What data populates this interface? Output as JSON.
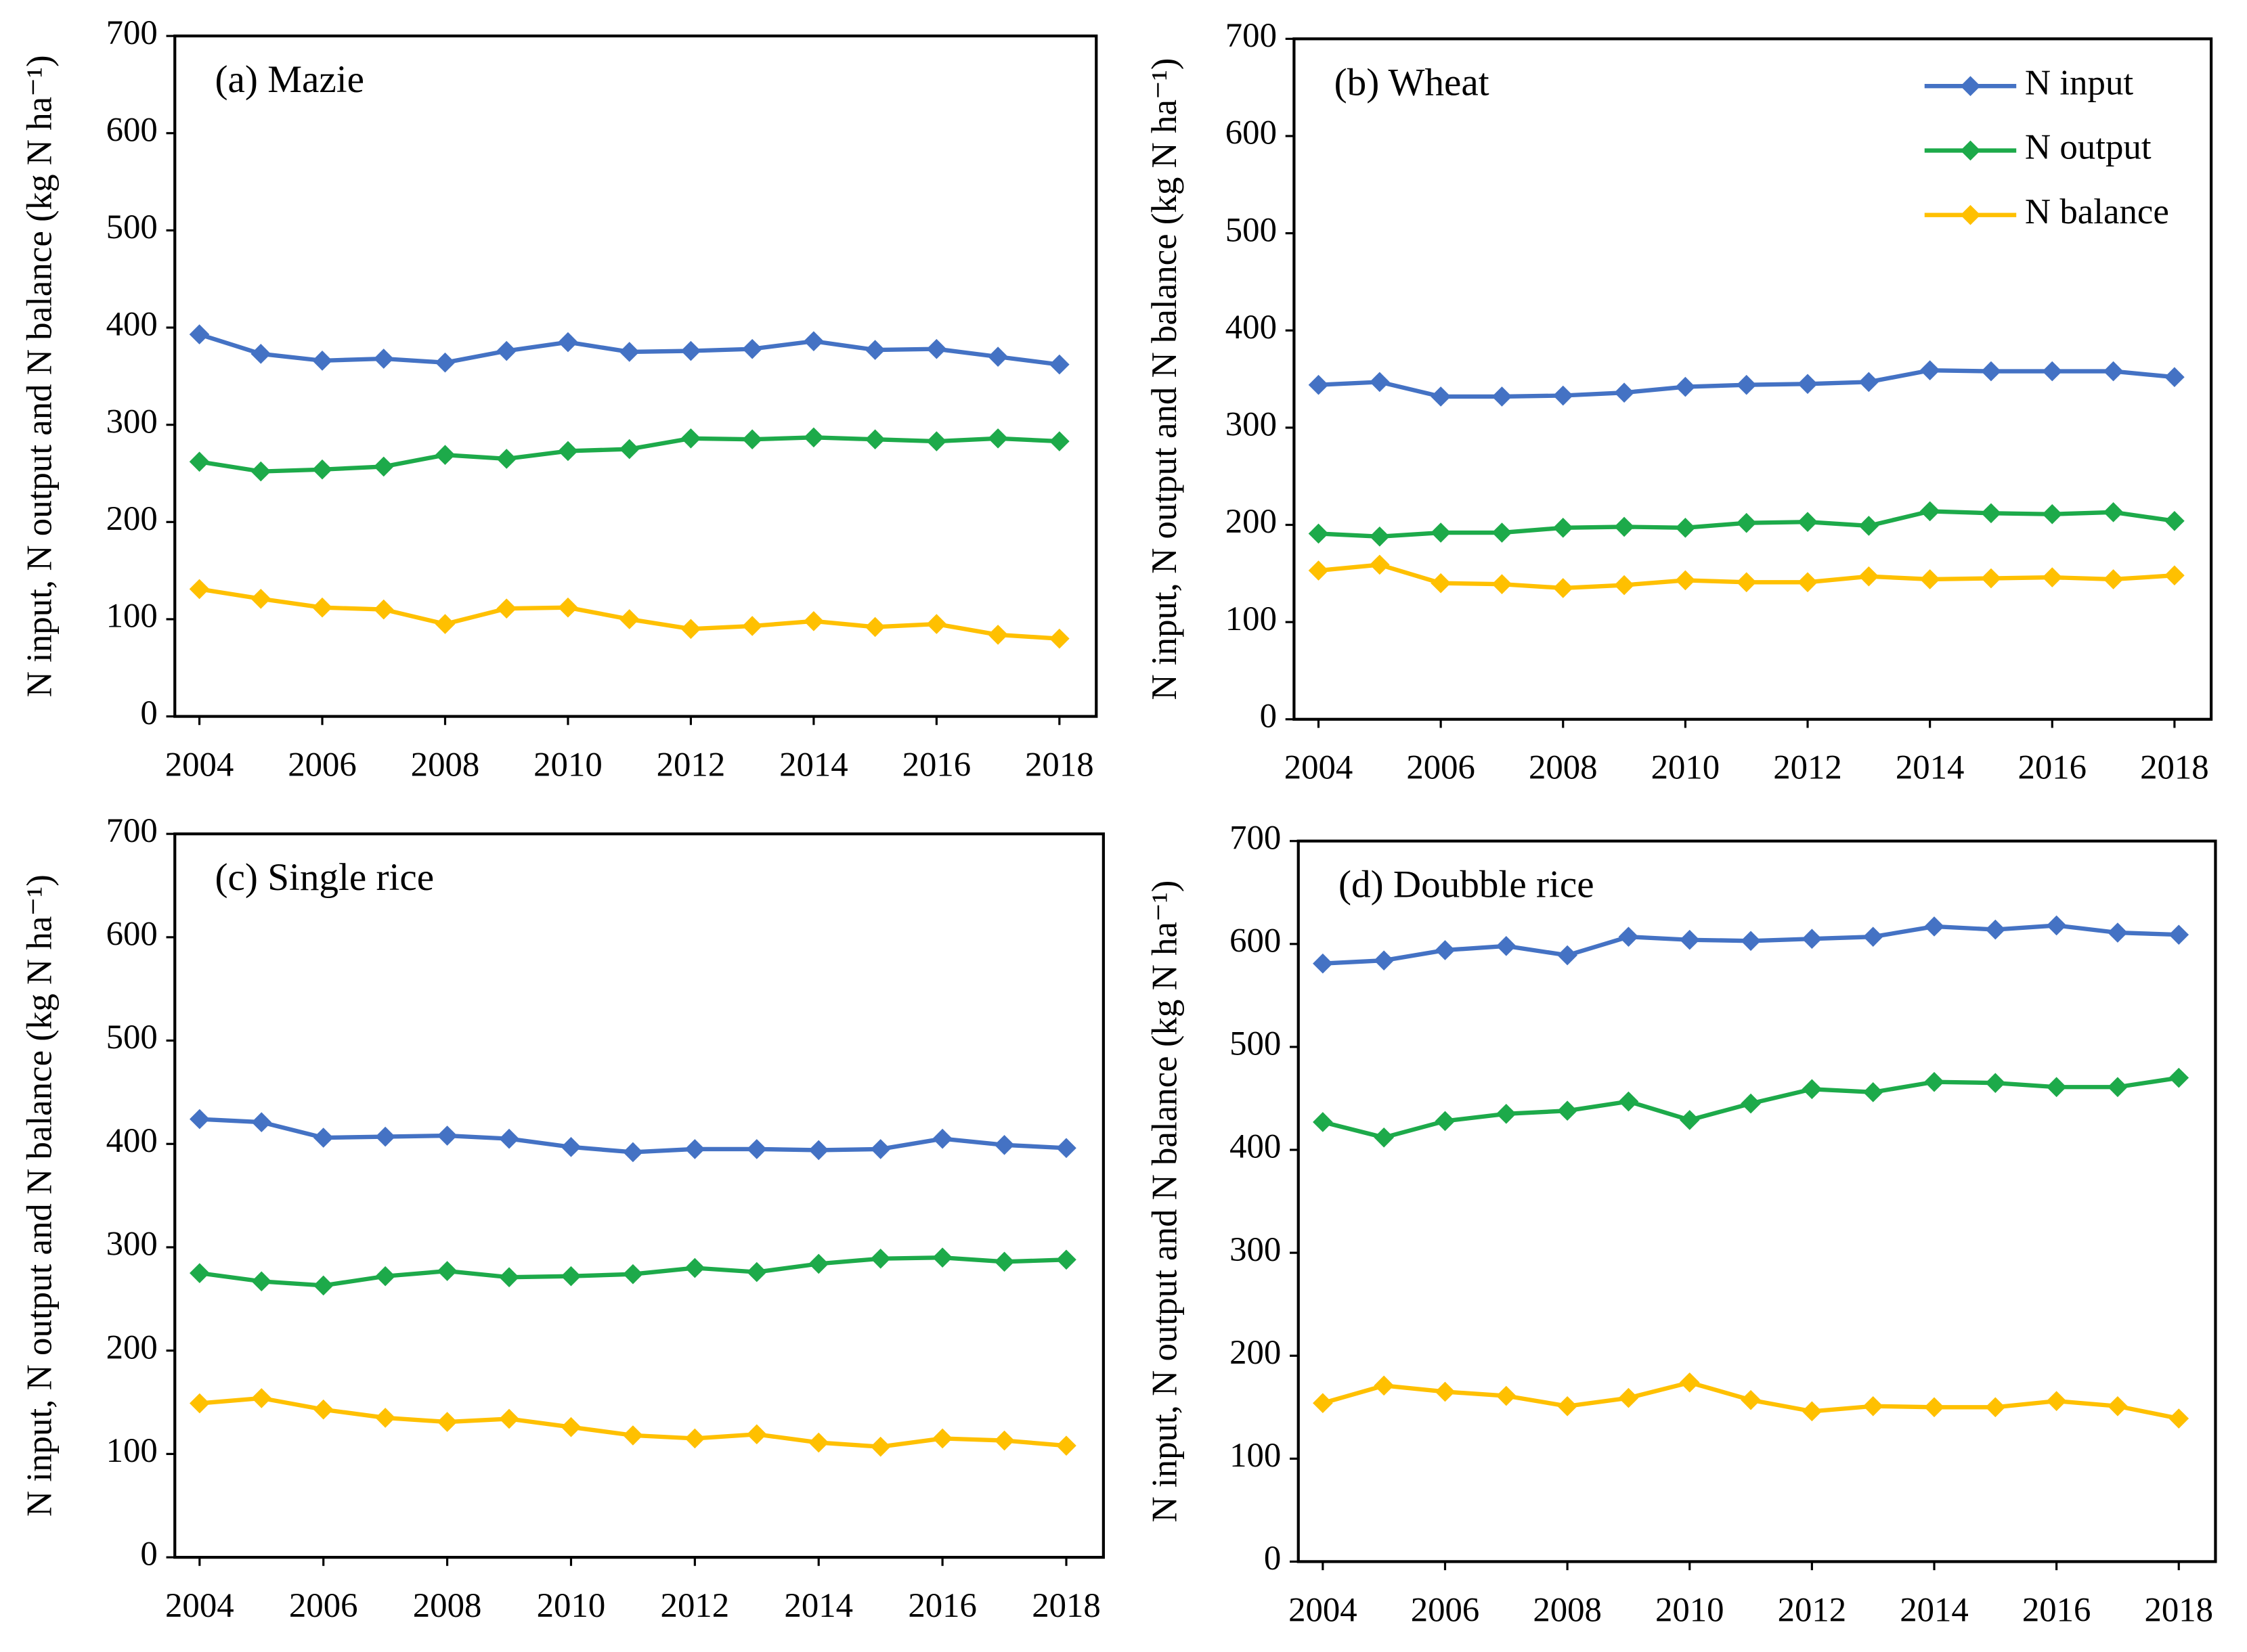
{
  "chart_data": [
    {
      "type": "line",
      "title": "(a) Mazie",
      "y_label": "N input, N output and N balance (kg N ha⁻¹)",
      "x": [
        2004,
        2005,
        2006,
        2007,
        2008,
        2009,
        2010,
        2011,
        2012,
        2013,
        2014,
        2015,
        2016,
        2017,
        2018
      ],
      "xlim": [
        2003.6,
        2018.6
      ],
      "xticks": [
        2004,
        2006,
        2008,
        2010,
        2012,
        2014,
        2016,
        2018
      ],
      "ylim": [
        0,
        700
      ],
      "yticks": [
        0,
        100,
        200,
        300,
        400,
        500,
        600,
        700
      ],
      "series": [
        {
          "color": "#4472c4",
          "values": [
            393,
            373,
            366,
            368,
            364,
            376,
            385,
            375,
            376,
            378,
            386,
            377,
            378,
            370,
            362
          ]
        },
        {
          "color": "#1daa4a",
          "values": [
            262,
            252,
            254,
            257,
            269,
            265,
            273,
            275,
            286,
            285,
            287,
            285,
            283,
            286,
            283
          ]
        },
        {
          "color": "#ffc000",
          "values": [
            131,
            121,
            112,
            110,
            95,
            111,
            112,
            100,
            90,
            93,
            98,
            92,
            95,
            84,
            80
          ]
        }
      ]
    },
    {
      "type": "line",
      "title": "(b) Wheat",
      "y_label": "N input, N output and N balance (kg N ha⁻¹)",
      "x": [
        2004,
        2005,
        2006,
        2007,
        2008,
        2009,
        2010,
        2011,
        2012,
        2013,
        2014,
        2015,
        2016,
        2017,
        2018
      ],
      "xlim": [
        2003.6,
        2018.6
      ],
      "xticks": [
        2004,
        2006,
        2008,
        2010,
        2012,
        2014,
        2016,
        2018
      ],
      "ylim": [
        0,
        700
      ],
      "yticks": [
        0,
        100,
        200,
        300,
        400,
        500,
        600,
        700
      ],
      "legend": "upper right",
      "series": [
        {
          "name": "N input",
          "color": "#4472c4",
          "values": [
            344,
            347,
            332,
            332,
            333,
            336,
            342,
            344,
            345,
            347,
            359,
            358,
            358,
            358,
            352
          ]
        },
        {
          "name": "N output",
          "color": "#1daa4a",
          "values": [
            191,
            188,
            192,
            192,
            197,
            198,
            197,
            202,
            203,
            199,
            214,
            212,
            211,
            213,
            204
          ]
        },
        {
          "name": "N balance",
          "color": "#ffc000",
          "values": [
            153,
            159,
            140,
            139,
            135,
            138,
            143,
            141,
            141,
            147,
            144,
            145,
            146,
            144,
            148
          ]
        }
      ]
    },
    {
      "type": "line",
      "title": "(c) Single rice",
      "y_label": "N input, N output and N balance (kg N ha⁻¹)",
      "x": [
        2004,
        2005,
        2006,
        2007,
        2008,
        2009,
        2010,
        2011,
        2012,
        2013,
        2014,
        2015,
        2016,
        2017,
        2018
      ],
      "xlim": [
        2003.6,
        2018.6
      ],
      "xticks": [
        2004,
        2006,
        2008,
        2010,
        2012,
        2014,
        2016,
        2018
      ],
      "ylim": [
        0,
        700
      ],
      "yticks": [
        0,
        100,
        200,
        300,
        400,
        500,
        600,
        700
      ],
      "series": [
        {
          "color": "#4472c4",
          "values": [
            424,
            421,
            406,
            407,
            408,
            405,
            397,
            392,
            395,
            395,
            394,
            395,
            405,
            399,
            396
          ]
        },
        {
          "color": "#1daa4a",
          "values": [
            275,
            267,
            263,
            272,
            277,
            271,
            272,
            274,
            280,
            276,
            284,
            289,
            290,
            286,
            288
          ]
        },
        {
          "color": "#ffc000",
          "values": [
            149,
            154,
            143,
            135,
            131,
            134,
            126,
            118,
            115,
            119,
            111,
            107,
            115,
            113,
            108
          ]
        }
      ]
    },
    {
      "type": "line",
      "title": "(d) Doubble rice",
      "y_label": "N input, N output and N balance (kg N ha⁻¹)",
      "x": [
        2004,
        2005,
        2006,
        2007,
        2008,
        2009,
        2010,
        2011,
        2012,
        2013,
        2014,
        2015,
        2016,
        2017,
        2018
      ],
      "xlim": [
        2003.6,
        2018.6
      ],
      "xticks": [
        2004,
        2006,
        2008,
        2010,
        2012,
        2014,
        2016,
        2018
      ],
      "ylim": [
        0,
        700
      ],
      "yticks": [
        0,
        100,
        200,
        300,
        400,
        500,
        600,
        700
      ],
      "series": [
        {
          "color": "#4472c4",
          "values": [
            581,
            584,
            594,
            598,
            589,
            607,
            604,
            603,
            605,
            607,
            617,
            614,
            618,
            611,
            609
          ]
        },
        {
          "color": "#1daa4a",
          "values": [
            427,
            412,
            428,
            435,
            438,
            447,
            429,
            445,
            459,
            456,
            466,
            465,
            461,
            461,
            470
          ]
        },
        {
          "color": "#ffc000",
          "values": [
            154,
            171,
            165,
            161,
            151,
            159,
            174,
            157,
            146,
            151,
            150,
            150,
            156,
            151,
            139
          ]
        }
      ]
    }
  ]
}
